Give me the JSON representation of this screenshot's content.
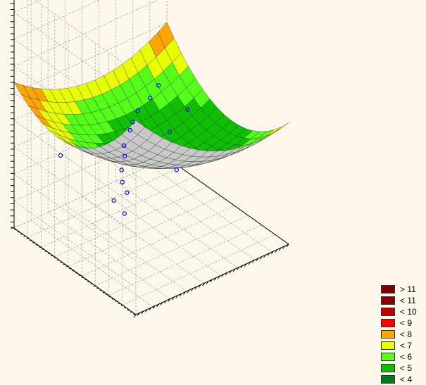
{
  "chart_data": {
    "type": "surface3d",
    "title": "",
    "xlabel": "",
    "ylabel": "",
    "zlabel": "",
    "grid": true,
    "legend_position": "bottom-right",
    "surface": {
      "model": "quadratic",
      "x_range": [
        -1,
        1
      ],
      "y_range": [
        -1,
        1
      ],
      "z_range": [
        0,
        14
      ],
      "z_formula": "4.3 + 1.7*x^2 + 2.6*y^2 - 1.2*x - 0.5*y + 0.9*x*y",
      "mesh": 17
    },
    "points": [
      {
        "x": -0.95,
        "y": -0.75,
        "z": 5.1
      },
      {
        "x": -0.85,
        "y": -0.45,
        "z": 4.9
      },
      {
        "x": -0.6,
        "y": -0.35,
        "z": 4.6
      },
      {
        "x": -0.5,
        "y": -0.15,
        "z": 4.5
      },
      {
        "x": -0.35,
        "y": 0.05,
        "z": 4.4
      },
      {
        "x": -0.15,
        "y": 0.25,
        "z": 4.3
      },
      {
        "x": 0.0,
        "y": 0.45,
        "z": 4.1
      },
      {
        "x": 0.2,
        "y": 0.6,
        "z": 4.2
      },
      {
        "x": 0.35,
        "y": 0.75,
        "z": 4.0
      },
      {
        "x": 0.5,
        "y": 0.85,
        "z": 4.1
      },
      {
        "x": 0.7,
        "y": 0.9,
        "z": 4.3
      },
      {
        "x": 0.85,
        "y": 0.95,
        "z": 4.6
      },
      {
        "x": 0.4,
        "y": 0.2,
        "z": 4.7
      },
      {
        "x": 0.75,
        "y": 0.35,
        "z": 4.9
      },
      {
        "x": -0.75,
        "y": 0.55,
        "z": 4.8
      },
      {
        "x": 0.05,
        "y": -0.35,
        "z": 4.6
      }
    ],
    "legend": [
      {
        "label": "> 11",
        "color": "#7f0000"
      },
      {
        "label": "< 11",
        "color": "#8b0000"
      },
      {
        "label": "< 10",
        "color": "#c00000"
      },
      {
        "label": "< 9",
        "color": "#ff0000"
      },
      {
        "label": "< 8",
        "color": "#ffa500"
      },
      {
        "label": "< 7",
        "color": "#e8ff00"
      },
      {
        "label": "< 6",
        "color": "#55ff1a"
      },
      {
        "label": "< 5",
        "color": "#10c000"
      },
      {
        "label": "< 4",
        "color": "#007a1a"
      }
    ],
    "colors": {
      "background": "#fdf7ec",
      "grid": "#b0b0b0",
      "axes": "#000000",
      "points": "#0000ff",
      "surface_underside": "#c8c8c8",
      "mesh_line": "#000000"
    }
  }
}
